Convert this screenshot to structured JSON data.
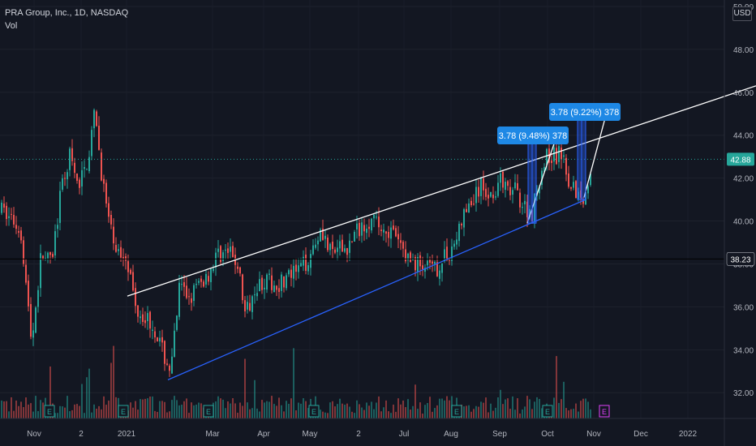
{
  "header": {
    "symbol_title": "PRA Group, Inc., 1D, NASDAQ",
    "volume_label": "Vol"
  },
  "currency_button": "USD",
  "chart_data": {
    "type": "candlestick",
    "title": "PRA Group, Inc., 1D, NASDAQ",
    "y_axis": {
      "ticks": [
        32.0,
        34.0,
        36.0,
        38.0,
        40.0,
        42.0,
        44.0,
        46.0,
        48.0,
        50.0
      ],
      "tick_labels": [
        "32.00",
        "34.00",
        "36.00",
        "38.00",
        "40.00",
        "42.00",
        "44.00",
        "46.00",
        "48.00",
        "50.00"
      ],
      "ylim": [
        30.8,
        50.3
      ]
    },
    "x_axis": {
      "labels": [
        "Nov",
        "2",
        "2021",
        "Mar",
        "Apr",
        "May",
        "2",
        "Jul",
        "Aug",
        "Sep",
        "Oct",
        "Nov",
        "Dec",
        "2022"
      ]
    },
    "price_badges": [
      {
        "value": "42.88",
        "color": "#26a69a"
      },
      {
        "value": "38.23",
        "color": "#131722"
      }
    ],
    "price_lines": [
      {
        "value": 42.88,
        "style": "dotted",
        "color": "#26a69a"
      },
      {
        "value": 38.23,
        "style": "solid",
        "color": "#000000"
      }
    ],
    "annotations": [
      {
        "text": "3.78 (9.48%) 378",
        "color": "#2962ff"
      },
      {
        "text": "3.78 (9.22%) 378",
        "color": "#2962ff"
      }
    ],
    "colors": {
      "up": "#26a69a",
      "down": "#ef5350",
      "channel_upper": "#ffffff",
      "channel_lower": "#2962ff",
      "projection": "#2962ff"
    },
    "earnings_marker_label": "E",
    "grid": true
  }
}
